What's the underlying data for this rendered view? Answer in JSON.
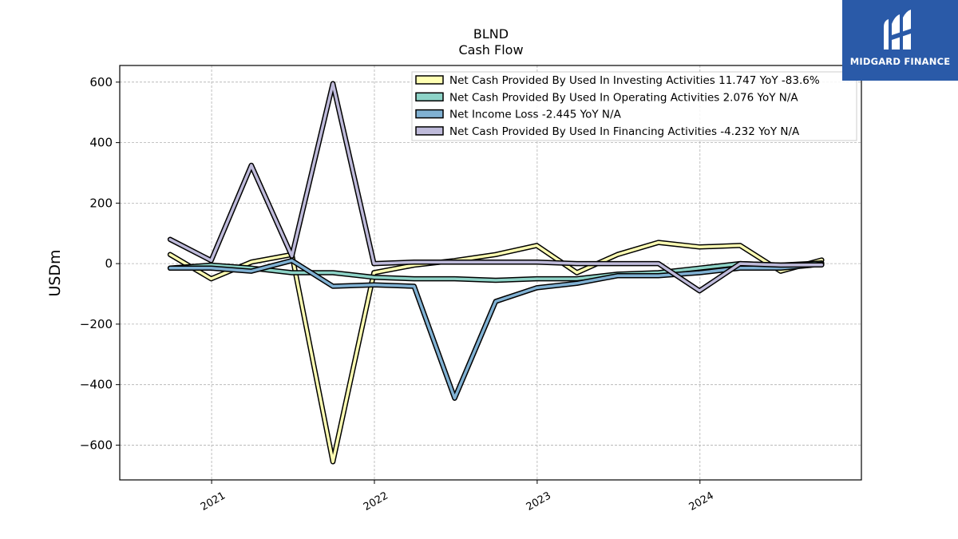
{
  "chart_data": {
    "type": "line",
    "title": "BLND",
    "subtitle": "Cash Flow",
    "xlabel": "",
    "ylabel": "USDm",
    "ylim": [
      -715,
      655
    ],
    "y_ticks": [
      600,
      400,
      200,
      0,
      -200,
      -400,
      -600
    ],
    "y_tick_labels": [
      "600",
      "400",
      "200",
      "0",
      "−200",
      "−400",
      "−600"
    ],
    "x_tick_labels": [
      "2021",
      "2022",
      "2023",
      "2024"
    ],
    "x_tick_dates": [
      "2021-01-01",
      "2022-01-01",
      "2023-01-01",
      "2024-01-01"
    ],
    "xlim": [
      "2020-06-09",
      "2024-12-28"
    ],
    "grid": true,
    "legend_position": "top-right",
    "x": [
      "2020-09-30",
      "2020-12-31",
      "2021-03-31",
      "2021-06-30",
      "2021-09-30",
      "2021-12-31",
      "2022-03-31",
      "2022-06-30",
      "2022-09-30",
      "2022-12-31",
      "2023-03-31",
      "2023-06-30",
      "2023-09-30",
      "2023-12-31",
      "2024-03-31",
      "2024-06-30",
      "2024-09-30"
    ],
    "series": [
      {
        "name": "Net Cash Provided By Used In Investing Activities  11.747 YoY -83.6%",
        "color": "#ffffb3",
        "values": [
          30,
          -50,
          5,
          30,
          -655,
          -30,
          -5,
          10,
          30,
          60,
          -30,
          30,
          70,
          55,
          60,
          -25,
          12
        ]
      },
      {
        "name": "Net Cash Provided By Used In Operating Activities  2.076 YoY N/A",
        "color": "#8dd3c7",
        "values": [
          -15,
          -5,
          -15,
          -30,
          -30,
          -45,
          -50,
          -50,
          -55,
          -50,
          -50,
          -35,
          -30,
          -15,
          0,
          -5,
          2
        ]
      },
      {
        "name": "Net Income Loss  -2.445 YoY N/A",
        "color": "#80b1d3",
        "values": [
          -15,
          -15,
          -25,
          10,
          -75,
          -70,
          -75,
          -445,
          -125,
          -80,
          -65,
          -40,
          -40,
          -30,
          -15,
          -15,
          -2
        ]
      },
      {
        "name": "Net Cash Provided By Used In Financing Activities  -4.232 YoY N/A",
        "color": "#bebada",
        "values": [
          80,
          10,
          325,
          25,
          595,
          0,
          5,
          5,
          5,
          5,
          0,
          0,
          0,
          -90,
          0,
          -5,
          -4
        ]
      }
    ]
  },
  "logo": {
    "text": "MIDGARD FINANCE",
    "color": "#2a5aa8"
  }
}
